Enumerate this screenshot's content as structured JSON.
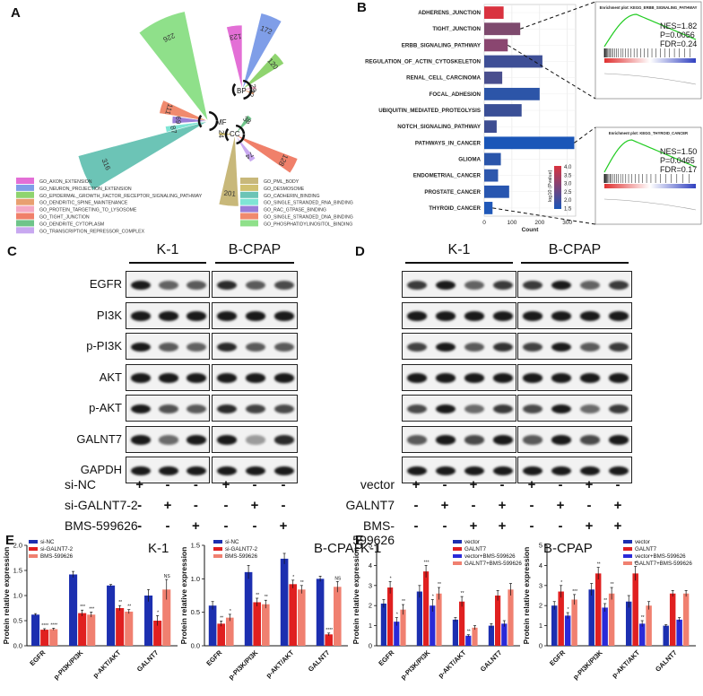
{
  "panel_labels": [
    "A",
    "B",
    "C",
    "D",
    "E",
    "F"
  ],
  "panelA": {
    "petals": [
      {
        "cat": "MF",
        "value": "226",
        "color": "#8fe08a"
      },
      {
        "cat": "MF",
        "value": "111",
        "color": "#f08a6e"
      },
      {
        "cat": "MF",
        "value": "69",
        "color": "#9a7ed8"
      },
      {
        "cat": "MF",
        "value": "87",
        "color": "#7fe5d5"
      },
      {
        "cat": "MF",
        "value": "316",
        "color": "#6cc4b6"
      },
      {
        "cat": "BP",
        "value": "123",
        "color": "#e36fd6"
      },
      {
        "cat": "BP",
        "value": "172",
        "color": "#7f9ee8"
      },
      {
        "cat": "BP",
        "value": "120",
        "color": "#8fd46f"
      },
      {
        "cat": "BP",
        "value": "29",
        "color": "#f4a8c4"
      },
      {
        "cat": "BP",
        "value": "22",
        "color": "#e8a070"
      },
      {
        "cat": "CC",
        "value": "24",
        "color": "#d0c070"
      },
      {
        "cat": "CC",
        "value": "38",
        "color": "#6fc48a"
      },
      {
        "cat": "CC",
        "value": "74",
        "color": "#c8a8f0"
      },
      {
        "cat": "CC",
        "value": "201",
        "color": "#c8b87a"
      },
      {
        "cat": "CC",
        "value": "128",
        "color": "#f0806a"
      }
    ],
    "center_labels": [
      "MF",
      "BP",
      "CC"
    ],
    "legend_left": [
      {
        "label": "GO_AXON_EXTENSION",
        "color": "#e36fd6"
      },
      {
        "label": "GO_NEURON_PROJECTION_EXTENSION",
        "color": "#7f9ee8"
      },
      {
        "label": "GO_EPIDERMAL_GROWTH_FACTOR_RECEPTOR_SIGNALING_PATHWAY",
        "color": "#8fd46f"
      },
      {
        "label": "GO_DENDRITIC_SPINE_MAINTENANCE",
        "color": "#e8a070"
      },
      {
        "label": "GO_PROTEIN_TARGETING_TO_LYSOSOME",
        "color": "#f4a8c4"
      },
      {
        "label": "GO_TIGHT_JUNCTION",
        "color": "#f0806a"
      },
      {
        "label": "GO_DENDRITE_CYTOPLASM",
        "color": "#6fc48a"
      },
      {
        "label": "GO_TRANSCRIPTION_REPRESSOR_COMPLEX",
        "color": "#c8a8f0"
      }
    ],
    "legend_right": [
      {
        "label": "GO_PML_BODY",
        "color": "#c8b87a"
      },
      {
        "label": "GO_DESMOSOME",
        "color": "#d0c070"
      },
      {
        "label": "GO_CADHERIN_BINDING",
        "color": "#6cc4b6"
      },
      {
        "label": "GO_SINGLE_STRANDED_RNA_BINDING",
        "color": "#7fe5d5"
      },
      {
        "label": "GO_RAC_GTPASE_BINDING",
        "color": "#9a7ed8"
      },
      {
        "label": "GO_SINGLE_STRANDED_DNA_BINDING",
        "color": "#f08a6e"
      },
      {
        "label": "GO_PHOSPHATIDYLINOSITOL_BINDING",
        "color": "#8fe08a"
      }
    ]
  },
  "panelB": {
    "xlabel": "Count",
    "xticks": [
      "0",
      "100",
      "200",
      "300"
    ],
    "legend_title": "log10 (Pvalue)",
    "legend_ticks": [
      "4.0",
      "3.5",
      "3.0",
      "2.5",
      "2.0",
      "1.5"
    ],
    "gsea_top": {
      "title": "Enrichment plot: KEGG_ERBB_SIGNALING_PATHWAY",
      "nes": "NES=1.82",
      "p": "P=0.0056",
      "fdr": "FDR=0.24"
    },
    "gsea_bottom": {
      "title": "Enrichment plot: KEGG_THYROID_CANCER",
      "nes": "NES=1.50",
      "p": "P=0.0465",
      "fdr": "FDR=0.17"
    }
  },
  "chart_data": [
    {
      "type": "bar",
      "panel": "B",
      "categories": [
        "ADHERENS_JUNCTION",
        "TIGHT_JUNCTION",
        "ERBB_SIGNALING_PATHWAY",
        "REGULATION_OF_ACTIN_CYTOSKELETON",
        "RENAL_CELL_CARCINOMA",
        "FOCAL_ADHESION",
        "UBIQUITIN_MEDIATED_PROTEOLYSIS",
        "NOTCH_SIGNALING_PATHWAY",
        "PATHWAYS_IN_CANCER",
        "GLIOMA",
        "ENDOMETRIAL_CANCER",
        "PROSTATE_CANCER",
        "THYROID_CANCER"
      ],
      "values": [
        70,
        130,
        85,
        210,
        65,
        200,
        135,
        45,
        325,
        60,
        50,
        90,
        30
      ],
      "colors": [
        "#d9323f",
        "#7e4a6e",
        "#8a4670",
        "#3e4f96",
        "#4a4f8e",
        "#2c55a8",
        "#3a4f96",
        "#3e4e92",
        "#1a56b8",
        "#2a55aa",
        "#2d57ad",
        "#2856b0",
        "#2058b8"
      ],
      "xlabel": "Count",
      "xlim": [
        0,
        330
      ],
      "orientation": "horizontal"
    },
    {
      "type": "bar",
      "panel": "E",
      "title": "K-1",
      "ylabel": "Protein relative expression",
      "categories": [
        "EGFR",
        "p-PI3K/PI3K",
        "p-AKT/AKT",
        "GALNT7"
      ],
      "series": [
        {
          "name": "si-NC",
          "color": "#1c2fb0",
          "values": [
            0.62,
            1.42,
            1.2,
            1.0
          ],
          "errors": [
            0.02,
            0.06,
            0.02,
            0.12
          ]
        },
        {
          "name": "si-GALNT7-2",
          "color": "#e02020",
          "values": [
            0.32,
            0.65,
            0.75,
            0.5
          ],
          "errors": [
            0.02,
            0.06,
            0.05,
            0.1
          ]
        },
        {
          "name": "BMS-599626",
          "color": "#f08070",
          "values": [
            0.33,
            0.62,
            0.68,
            1.12
          ],
          "errors": [
            0.02,
            0.05,
            0.04,
            0.2
          ]
        }
      ],
      "annotations": [
        "****",
        "****",
        "***",
        "***",
        "**",
        "**",
        "*",
        "NS"
      ],
      "ylim": [
        0,
        2.0
      ],
      "yticks": [
        "0.0",
        "0.5",
        "1.0",
        "1.5",
        "2.0"
      ]
    },
    {
      "type": "bar",
      "panel": "E",
      "title": "B-CPAP",
      "ylabel": "Protein relative expression",
      "categories": [
        "EGFR",
        "p-PI3K/PI3K",
        "p-AKT/AKT",
        "GALNT7"
      ],
      "series": [
        {
          "name": "si-NC",
          "color": "#1c2fb0",
          "values": [
            0.6,
            1.1,
            1.3,
            1.0
          ],
          "errors": [
            0.06,
            0.1,
            0.08,
            0.04
          ]
        },
        {
          "name": "si-GALNT7-2",
          "color": "#e02020",
          "values": [
            0.33,
            0.65,
            0.92,
            0.17
          ],
          "errors": [
            0.04,
            0.06,
            0.06,
            0.02
          ]
        },
        {
          "name": "BMS-599626",
          "color": "#f08070",
          "values": [
            0.42,
            0.62,
            0.84,
            0.88
          ],
          "errors": [
            0.05,
            0.06,
            0.06,
            0.08
          ]
        }
      ],
      "annotations": [
        "**",
        "*",
        "**",
        "**",
        "*",
        "**",
        "****",
        "NS"
      ],
      "ylim": [
        0,
        1.5
      ],
      "yticks": [
        "0.0",
        "0.5",
        "1.0",
        "1.5"
      ]
    },
    {
      "type": "bar",
      "panel": "F",
      "title": "K-1",
      "ylabel": "Protein relative expression",
      "categories": [
        "EGFR",
        "p-PI3K/PI3K",
        "p-AKT/AKT",
        "GALNT7"
      ],
      "series": [
        {
          "name": "vector",
          "color": "#1c2fb0",
          "values": [
            2.1,
            2.7,
            1.3,
            1.0
          ],
          "errors": [
            0.2,
            0.3,
            0.1,
            0.1
          ]
        },
        {
          "name": "GALNT7",
          "color": "#e02020",
          "values": [
            2.9,
            3.7,
            2.2,
            2.5
          ],
          "errors": [
            0.3,
            0.3,
            0.25,
            0.25
          ]
        },
        {
          "name": "vector+BMS-599626",
          "color": "#2a2ad8",
          "values": [
            1.2,
            2.0,
            0.5,
            1.1
          ],
          "errors": [
            0.2,
            0.3,
            0.05,
            0.15
          ]
        },
        {
          "name": "GALNT7+BMS-599626",
          "color": "#f08070",
          "values": [
            1.8,
            2.6,
            0.9,
            2.8
          ],
          "errors": [
            0.25,
            0.3,
            0.1,
            0.3
          ]
        }
      ],
      "annotations": [
        "*",
        "*",
        "**",
        "***",
        "*",
        "**",
        "**",
        "**"
      ],
      "ylim": [
        0,
        5
      ],
      "yticks": [
        "0",
        "1",
        "2",
        "3",
        "4",
        "5"
      ]
    },
    {
      "type": "bar",
      "panel": "F",
      "title": "B-CPAP",
      "ylabel": "Protein relative expression",
      "categories": [
        "EGFR",
        "p-PI3K/PI3K",
        "p-AKT/AKT",
        "GALNT7"
      ],
      "series": [
        {
          "name": "vector",
          "color": "#1c2fb0",
          "values": [
            2.0,
            2.8,
            2.2,
            1.0
          ],
          "errors": [
            0.2,
            0.3,
            0.3,
            0.05
          ]
        },
        {
          "name": "GALNT7",
          "color": "#e02020",
          "values": [
            2.7,
            3.6,
            3.6,
            2.6
          ],
          "errors": [
            0.3,
            0.3,
            0.35,
            0.15
          ]
        },
        {
          "name": "vector+BMS-599626",
          "color": "#2a2ad8",
          "values": [
            1.5,
            1.9,
            1.1,
            1.3
          ],
          "errors": [
            0.15,
            0.2,
            0.15,
            0.1
          ]
        },
        {
          "name": "GALNT7+BMS-599626",
          "color": "#f08070",
          "values": [
            2.3,
            2.6,
            2.0,
            2.6
          ],
          "errors": [
            0.25,
            0.3,
            0.2,
            0.15
          ]
        }
      ],
      "annotations": [
        "*",
        "*",
        "***",
        "**",
        "**",
        "**",
        "**",
        "**"
      ],
      "ylim": [
        0,
        5
      ],
      "yticks": [
        "0",
        "1",
        "2",
        "3",
        "4",
        "5"
      ]
    }
  ],
  "blotC": {
    "groups": [
      "K-1",
      "B-CPAP"
    ],
    "rows": [
      "EGFR",
      "PI3K",
      "p-PI3K",
      "AKT",
      "p-AKT",
      "GALNT7",
      "GAPDH"
    ],
    "conditions": [
      {
        "label": "si-NC",
        "signs": [
          "+",
          "-",
          "-",
          "+",
          "-",
          "-"
        ]
      },
      {
        "label": "si-GALNT7-2",
        "signs": [
          "-",
          "+",
          "-",
          "-",
          "+",
          "-"
        ]
      },
      {
        "label": "BMS-599626",
        "signs": [
          "-",
          "-",
          "+",
          "-",
          "-",
          "+"
        ]
      }
    ],
    "intensity": [
      [
        1.0,
        0.55,
        0.6,
        0.9,
        0.6,
        0.7
      ],
      [
        1.0,
        1.0,
        1.0,
        1.0,
        1.0,
        1.0
      ],
      [
        1.0,
        0.6,
        0.55,
        0.9,
        0.6,
        0.6
      ],
      [
        1.0,
        1.0,
        1.0,
        1.0,
        1.0,
        1.0
      ],
      [
        1.0,
        0.65,
        0.6,
        0.9,
        0.75,
        0.7
      ],
      [
        1.0,
        0.5,
        1.0,
        1.0,
        0.2,
        0.9
      ],
      [
        1.0,
        1.0,
        1.0,
        1.0,
        1.0,
        1.0
      ]
    ]
  },
  "blotD": {
    "groups": [
      "K-1",
      "B-CPAP"
    ],
    "rows": [
      "EGFR",
      "PI3K",
      "p-PI3K",
      "AKT",
      "p-AKT",
      "GALNT7",
      "GAPDH"
    ],
    "conditions": [
      {
        "label": "vector",
        "signs": [
          "+",
          "-",
          "+",
          "-",
          "+",
          "-",
          "+",
          "-"
        ]
      },
      {
        "label": "GALNT7",
        "signs": [
          "-",
          "+",
          "-",
          "+",
          "-",
          "+",
          "-",
          "+"
        ]
      },
      {
        "label": "BMS-599626",
        "signs": [
          "-",
          "-",
          "+",
          "+",
          "-",
          "-",
          "+",
          "+"
        ]
      }
    ],
    "intensity": [
      [
        0.8,
        1.0,
        0.55,
        0.8,
        0.8,
        1.0,
        0.55,
        0.8
      ],
      [
        1.0,
        1.0,
        1.0,
        1.0,
        1.0,
        1.0,
        1.0,
        1.0
      ],
      [
        0.75,
        1.0,
        0.6,
        0.85,
        0.75,
        1.0,
        0.6,
        0.8
      ],
      [
        1.0,
        1.0,
        1.0,
        1.0,
        1.0,
        1.0,
        1.0,
        1.0
      ],
      [
        0.7,
        1.0,
        0.5,
        0.8,
        0.7,
        1.0,
        0.5,
        0.8
      ],
      [
        0.6,
        1.0,
        0.7,
        1.0,
        0.6,
        1.0,
        0.7,
        1.0
      ],
      [
        1.0,
        1.0,
        1.0,
        1.0,
        1.0,
        1.0,
        1.0,
        1.0
      ]
    ]
  }
}
